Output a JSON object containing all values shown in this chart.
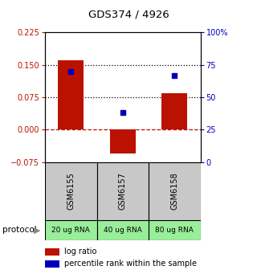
{
  "title": "GDS374 / 4926",
  "samples": [
    "GSM6155",
    "GSM6157",
    "GSM6158"
  ],
  "protocol_labels": [
    "20 ug RNA",
    "40 ug RNA",
    "80 ug RNA"
  ],
  "log_ratios": [
    0.16,
    -0.055,
    0.085
  ],
  "percentile_ranks": [
    70,
    38,
    67
  ],
  "left_ylim": [
    -0.075,
    0.225
  ],
  "left_yticks": [
    -0.075,
    0,
    0.075,
    0.15,
    0.225
  ],
  "right_ylim": [
    0,
    100
  ],
  "right_yticks": [
    0,
    25,
    50,
    75,
    100
  ],
  "right_yticklabels": [
    "0",
    "25",
    "50",
    "75",
    "100%"
  ],
  "bar_color": "#bb1100",
  "point_color": "#0000bb",
  "dotted_lines": [
    0.075,
    0.15
  ],
  "bar_width": 0.5,
  "bg_color": "#ffffff",
  "plot_bg": "#ffffff",
  "sample_box_color": "#c8c8c8",
  "protocol_box_color": "#99ee99",
  "left_tick_color": "#bb1100",
  "right_tick_color": "#0000bb"
}
